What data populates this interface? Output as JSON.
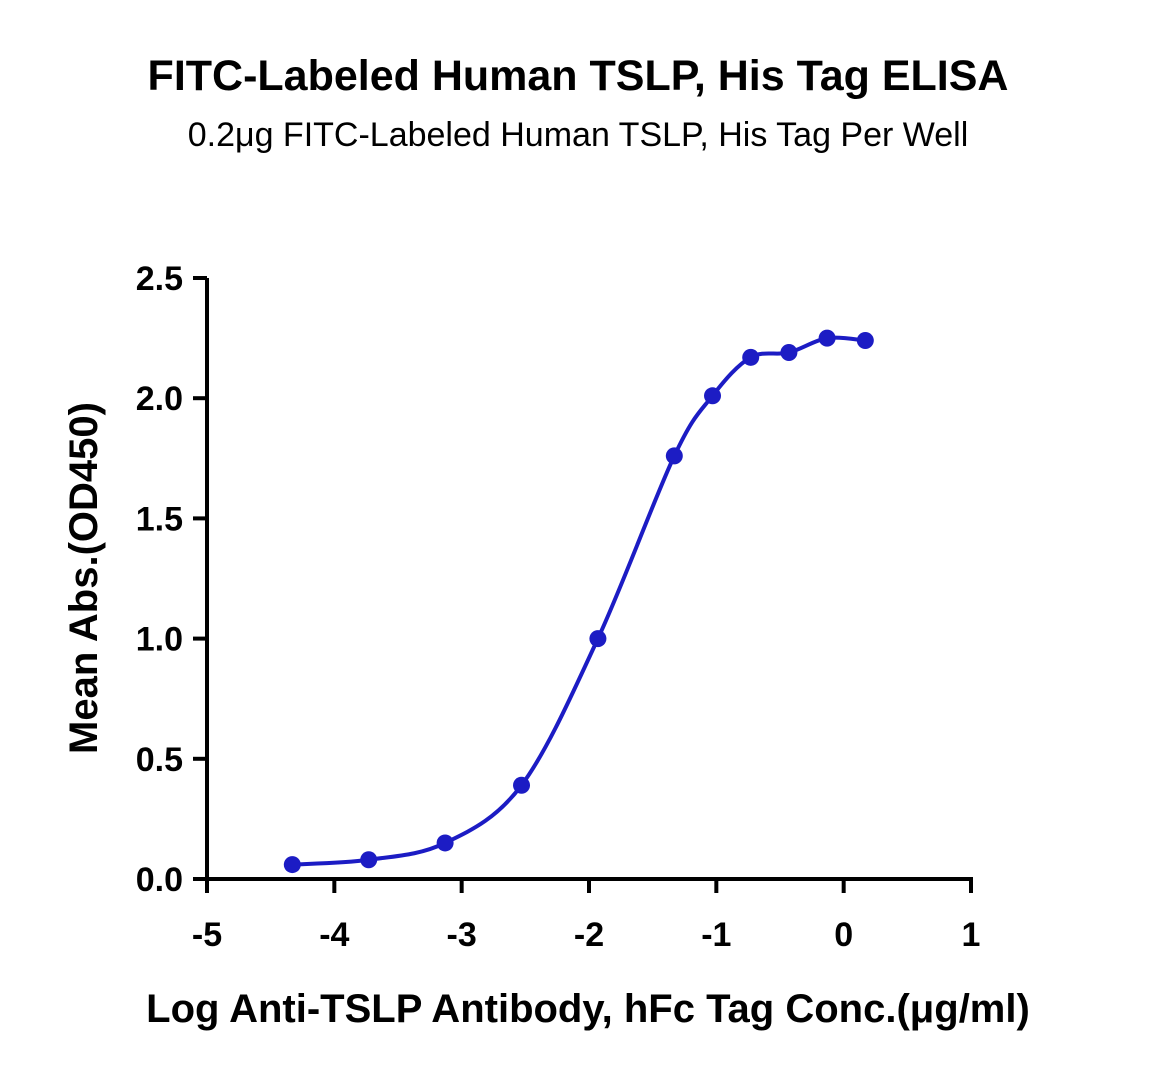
{
  "chart_data": {
    "type": "scatter",
    "title": "FITC-Labeled Human TSLP, His Tag ELISA",
    "subtitle": "0.2μg FITC-Labeled Human TSLP, His Tag Per Well",
    "xlabel": "Log Anti-TSLP Antibody, hFc Tag Conc.(μg/ml)",
    "ylabel": "Mean Abs.(OD450)",
    "xlim": [
      -5,
      1
    ],
    "ylim": [
      0,
      2.5
    ],
    "x_ticks": [
      "-5",
      "-4",
      "-3",
      "-2",
      "-1",
      "0",
      "1"
    ],
    "y_ticks": [
      "0.0",
      "0.5",
      "1.0",
      "1.5",
      "2.0",
      "2.5"
    ],
    "grid": false,
    "series": [
      {
        "color": "#1c1cc4",
        "fit": "sigmoidal",
        "points": [
          {
            "x": -4.33,
            "y": 0.06
          },
          {
            "x": -3.73,
            "y": 0.08
          },
          {
            "x": -3.13,
            "y": 0.15
          },
          {
            "x": -2.53,
            "y": 0.39
          },
          {
            "x": -1.93,
            "y": 1.0
          },
          {
            "x": -1.33,
            "y": 1.76
          },
          {
            "x": -1.03,
            "y": 2.01
          },
          {
            "x": -0.73,
            "y": 2.17
          },
          {
            "x": -0.43,
            "y": 2.19
          },
          {
            "x": -0.13,
            "y": 2.25
          },
          {
            "x": 0.17,
            "y": 2.24
          }
        ]
      }
    ]
  }
}
